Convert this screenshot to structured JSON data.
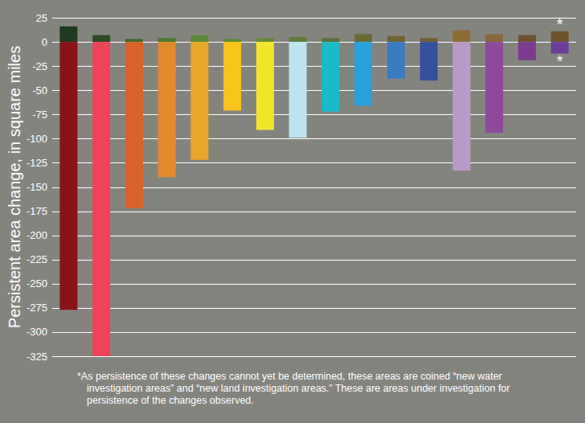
{
  "chart_data": {
    "type": "bar",
    "y_label": "Persistent area change, in square miles",
    "categories": [
      null,
      null,
      null,
      null,
      null,
      null,
      null,
      null,
      null,
      null,
      null,
      null,
      null,
      null,
      null,
      null
    ],
    "series": [
      {
        "values": [
          16,
          7,
          3,
          4,
          7,
          3,
          4,
          5,
          4,
          8,
          6,
          4,
          12,
          8,
          7,
          11
        ],
        "colors": [
          "#1e3a1f",
          "#2d4a26",
          "#3f6a2c",
          "#4a7a2e",
          "#5a8a34",
          "#5f8a36",
          "#6a8838",
          "#5f7a3a",
          "#5e7038",
          "#6b6a32",
          "#6f6430",
          "#716032",
          "#8c6c34",
          "#86683a",
          "#6e5230",
          "#6e522c"
        ]
      },
      {
        "values": [
          -277,
          -325,
          -172,
          -140,
          -122,
          -71,
          -91,
          -99,
          -72,
          -66,
          -38,
          -40,
          -133,
          -94,
          -19,
          -12
        ],
        "colors": [
          "#8b1217",
          "#ef4357",
          "#d9622b",
          "#e08a2c",
          "#e8a62a",
          "#f8c31a",
          "#f2e52b",
          "#bce3f0",
          "#1bbac9",
          "#27a2dc",
          "#3a7cc0",
          "#34519f",
          "#b89ac8",
          "#8d4a9c",
          "#7c3b91",
          "#6c3e9b"
        ]
      }
    ],
    "stacked": true,
    "ylim": [
      -325,
      25
    ],
    "yticks": [
      25,
      0,
      -25,
      -50,
      -75,
      -100,
      -125,
      -150,
      -175,
      -200,
      -225,
      -250,
      -275,
      -300,
      -325
    ],
    "grid": true,
    "tick_labels": "y",
    "annotations": [
      "*",
      "*",
      "*As persistence of these changes cannot yet be determined, these areas are coined “new water investigation areas” and “new land investigation areas.”  These are areas under investigation for persistence of the changes observed."
    ]
  }
}
